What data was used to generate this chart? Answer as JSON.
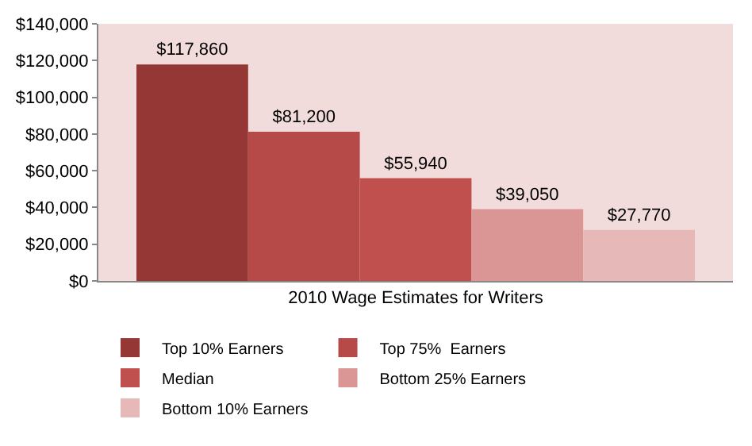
{
  "chart_data": {
    "type": "bar",
    "categories": [
      "2010 Wage Estimates for Writers"
    ],
    "series": [
      {
        "name": "Top 10% Earners",
        "color": "#953735",
        "values": [
          117860
        ],
        "value_labels": [
          "$117,860"
        ]
      },
      {
        "name": "Top 75%  Earners",
        "color": "#b54a48",
        "values": [
          81200
        ],
        "value_labels": [
          "$81,200"
        ]
      },
      {
        "name": "Median",
        "color": "#c0504d",
        "values": [
          55940
        ],
        "value_labels": [
          "$55,940"
        ]
      },
      {
        "name": "Bottom 25% Earners",
        "color": "#d99694",
        "values": [
          39050
        ],
        "value_labels": [
          "$39,050"
        ]
      },
      {
        "name": "Bottom 10% Earners",
        "color": "#e6b9b8",
        "values": [
          27770
        ],
        "value_labels": [
          "$27,770"
        ]
      }
    ],
    "ylim": [
      0,
      140000
    ],
    "yticks": [
      {
        "value": 0,
        "label": "$0"
      },
      {
        "value": 20000,
        "label": "$20,000"
      },
      {
        "value": 40000,
        "label": "$40,000"
      },
      {
        "value": 60000,
        "label": "$60,000"
      },
      {
        "value": 80000,
        "label": "$80,000"
      },
      {
        "value": 100000,
        "label": "$100,000"
      },
      {
        "value": 120000,
        "label": "$120,000"
      },
      {
        "value": 140000,
        "label": "$140,000"
      }
    ],
    "grid": false,
    "legend": "bottom"
  }
}
